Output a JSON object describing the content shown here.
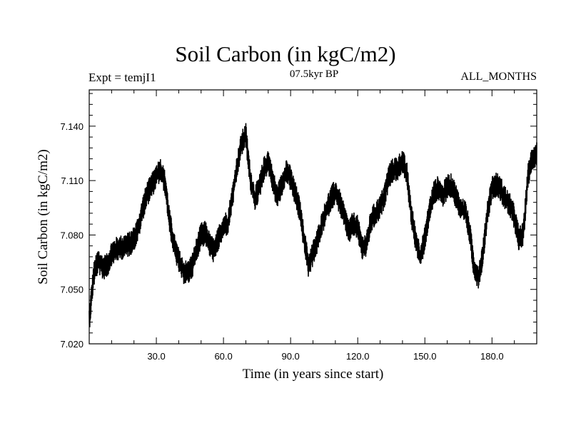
{
  "chart_data": {
    "type": "line",
    "title": "Soil Carbon (in kgC/m2)",
    "subtitle": "07.5kyr BP",
    "left_label": "Expt = temjI1",
    "right_label": "ALL_MONTHS",
    "xlabel": "Time (in years since start)",
    "ylabel": "Soil Carbon (in kgC/m2)",
    "xlim": [
      0,
      200
    ],
    "ylim": [
      7.02,
      7.16
    ],
    "x_ticks": [
      "30.0",
      "60.0",
      "90.0",
      "120.0",
      "150.0",
      "180.0"
    ],
    "y_ticks": [
      "7.020",
      "7.050",
      "7.080",
      "7.110",
      "7.140"
    ],
    "series": [
      {
        "name": "Soil Carbon",
        "color": "#000000",
        "x": [
          0,
          2,
          4,
          6,
          8,
          10,
          12,
          14,
          16,
          18,
          20,
          22,
          24,
          26,
          28,
          30,
          32,
          34,
          36,
          38,
          40,
          42,
          44,
          46,
          48,
          50,
          52,
          54,
          56,
          58,
          60,
          62,
          64,
          66,
          68,
          70,
          72,
          74,
          76,
          78,
          80,
          82,
          84,
          86,
          88,
          90,
          92,
          94,
          96,
          98,
          100,
          102,
          104,
          106,
          108,
          110,
          112,
          114,
          116,
          118,
          120,
          122,
          124,
          126,
          128,
          130,
          132,
          134,
          136,
          138,
          140,
          142,
          144,
          146,
          148,
          150,
          152,
          154,
          156,
          158,
          160,
          162,
          164,
          166,
          168,
          170,
          172,
          174,
          176,
          178,
          180,
          182,
          184,
          186,
          188,
          190,
          192,
          194,
          196,
          198,
          200
        ],
        "y": [
          7.033,
          7.058,
          7.066,
          7.062,
          7.063,
          7.07,
          7.072,
          7.073,
          7.074,
          7.075,
          7.078,
          7.084,
          7.095,
          7.103,
          7.107,
          7.113,
          7.116,
          7.108,
          7.087,
          7.074,
          7.066,
          7.06,
          7.059,
          7.063,
          7.072,
          7.08,
          7.081,
          7.074,
          7.071,
          7.079,
          7.085,
          7.087,
          7.101,
          7.117,
          7.13,
          7.135,
          7.111,
          7.1,
          7.106,
          7.116,
          7.121,
          7.11,
          7.101,
          7.107,
          7.116,
          7.111,
          7.103,
          7.094,
          7.078,
          7.063,
          7.07,
          7.077,
          7.086,
          7.094,
          7.1,
          7.104,
          7.098,
          7.09,
          7.082,
          7.086,
          7.084,
          7.073,
          7.075,
          7.088,
          7.092,
          7.095,
          7.102,
          7.113,
          7.116,
          7.117,
          7.121,
          7.113,
          7.091,
          7.077,
          7.068,
          7.078,
          7.093,
          7.103,
          7.106,
          7.101,
          7.107,
          7.107,
          7.101,
          7.094,
          7.093,
          7.082,
          7.062,
          7.057,
          7.07,
          7.093,
          7.106,
          7.108,
          7.105,
          7.1,
          7.096,
          7.09,
          7.078,
          7.08,
          7.112,
          7.123,
          7.125
        ],
        "noise_amplitude": 0.007
      }
    ]
  }
}
